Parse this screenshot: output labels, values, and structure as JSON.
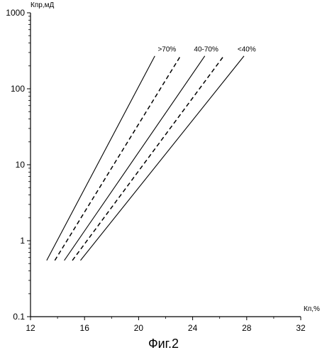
{
  "caption": "Фиг.2",
  "chart_data": {
    "type": "line",
    "ylabel": "Кпр,мД",
    "xlabel": "Кп,%",
    "x_scale": "linear",
    "y_scale": "log",
    "xlim": [
      12,
      32
    ],
    "ylim": [
      0.1,
      1000
    ],
    "x_ticks": [
      "12",
      "16",
      "20",
      "24",
      "28",
      "32"
    ],
    "y_ticks": [
      "0.1",
      "1",
      "10",
      "100",
      "1000"
    ],
    "grid": false,
    "series": [
      {
        "style": "solid",
        "x": [
          13.2,
          21.2
        ],
        "y": [
          0.55,
          270
        ]
      },
      {
        "style": "dashed",
        "x": [
          13.8,
          23.1
        ],
        "y": [
          0.55,
          270
        ]
      },
      {
        "style": "solid",
        "x": [
          14.5,
          24.9
        ],
        "y": [
          0.55,
          270
        ]
      },
      {
        "style": "dashed",
        "x": [
          15.1,
          26.3
        ],
        "y": [
          0.55,
          270
        ]
      },
      {
        "style": "solid",
        "x": [
          15.7,
          27.8
        ],
        "y": [
          0.55,
          270
        ]
      }
    ],
    "annotations": [
      {
        "text": ">70%",
        "x": 22.1,
        "y": 310
      },
      {
        "text": "40-70%",
        "x": 25.0,
        "y": 310
      },
      {
        "text": "<40%",
        "x": 28.0,
        "y": 310
      }
    ]
  }
}
